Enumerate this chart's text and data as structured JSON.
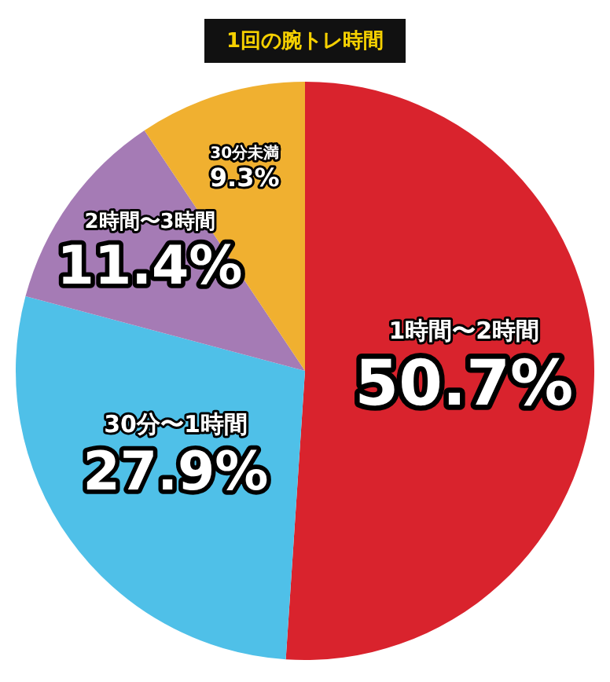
{
  "chart_data": {
    "type": "pie",
    "title": "1回の腕トレ時間",
    "categories": [
      "1時間〜2時間",
      "30分〜1時間",
      "2時間〜3時間",
      "30分未満"
    ],
    "values": [
      50.7,
      27.9,
      11.4,
      9.3
    ],
    "colors": [
      "#d9232d",
      "#4fc0e8",
      "#a57bb5",
      "#f0b030"
    ],
    "value_labels": [
      "50.7%",
      "27.9%",
      "11.4%",
      "9.3%"
    ],
    "legend": false
  }
}
